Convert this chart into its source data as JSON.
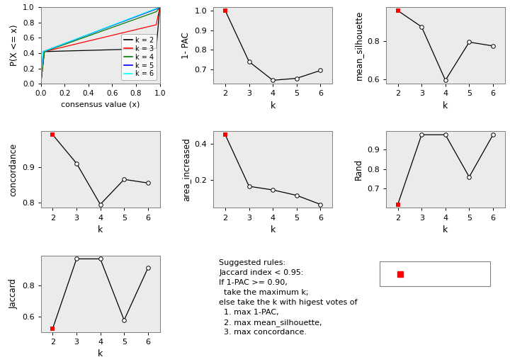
{
  "k_values": [
    2,
    3,
    4,
    5,
    6
  ],
  "one_pac": [
    1.0,
    0.74,
    0.645,
    0.655,
    0.695
  ],
  "mean_silhouette": [
    0.96,
    0.875,
    0.595,
    0.795,
    0.775
  ],
  "concordance": [
    0.99,
    0.91,
    0.795,
    0.865,
    0.855
  ],
  "area_increased": [
    0.45,
    0.165,
    0.145,
    0.115,
    0.065
  ],
  "rand": [
    0.62,
    0.975,
    0.975,
    0.76,
    0.975
  ],
  "jaccard": [
    0.52,
    0.975,
    0.975,
    0.575,
    0.915
  ],
  "one_pac_best_idx": 0,
  "mean_silhouette_best_idx": 0,
  "concordance_best_idx": 0,
  "area_increased_best_idx": 0,
  "rand_best_idx": 0,
  "jaccard_best_idx": 0,
  "ecdf_colors": [
    "black",
    "red",
    "green",
    "blue",
    "cyan"
  ],
  "ecdf_labels": [
    "k = 2",
    "k = 3",
    "k = 4",
    "k = 5",
    "k = 6"
  ],
  "red_dot_color": "#FF0000",
  "bg_color": "#EBEBEB",
  "text_lines": [
    "Suggested rules:",
    "Jaccard index < 0.95:",
    "If 1-PAC >= 0.90,",
    "  take the maximum k;",
    "else take the k with higest votes of",
    "  1. max 1-PAC,",
    "  2. max mean_silhouette,",
    "  3. max concordance."
  ]
}
